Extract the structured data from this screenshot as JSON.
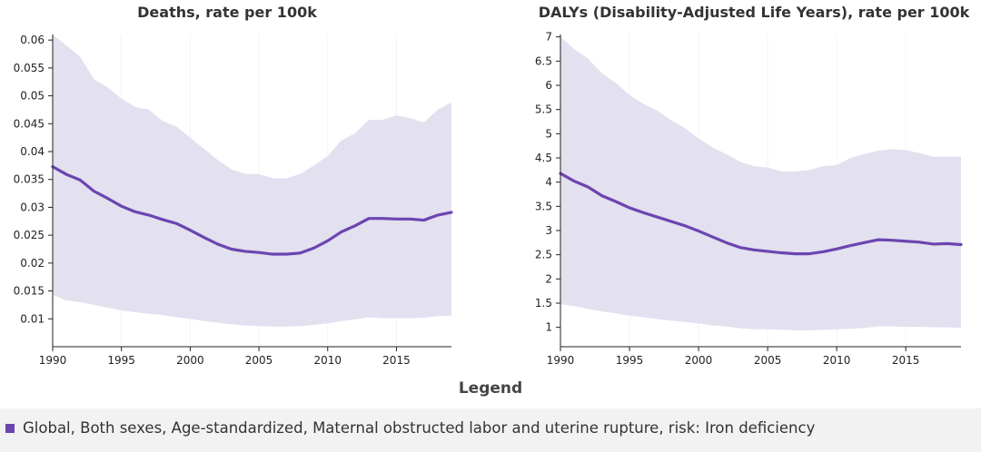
{
  "chart_data": [
    {
      "type": "area",
      "title": "Deaths, rate per 100k",
      "xlabel": "",
      "ylabel": "",
      "xlim": [
        1990,
        2019
      ],
      "ylim": [
        0.005,
        0.061
      ],
      "x_ticks": [
        1990,
        1995,
        2000,
        2005,
        2010,
        2015
      ],
      "y_ticks": [
        0.01,
        0.015,
        0.02,
        0.025,
        0.03,
        0.035,
        0.04,
        0.045,
        0.05,
        0.055,
        0.06
      ],
      "y_tick_labels": [
        "0.01",
        "0.015",
        "0.02",
        "0.025",
        "0.03",
        "0.035",
        "0.04",
        "0.045",
        "0.05",
        "0.055",
        "0.06"
      ],
      "x": [
        1990,
        1991,
        1992,
        1993,
        1994,
        1995,
        1996,
        1997,
        1998,
        1999,
        2000,
        2001,
        2002,
        2003,
        2004,
        2005,
        2006,
        2007,
        2008,
        2009,
        2010,
        2011,
        2012,
        2013,
        2014,
        2015,
        2016,
        2017,
        2018,
        2019
      ],
      "series": [
        {
          "name": "Global, Both sexes, Age-standardized, Maternal obstructed labor and uterine rupture, risk: Iron deficiency",
          "values": [
            0.0373,
            0.0359,
            0.0349,
            0.0329,
            0.0316,
            0.0302,
            0.0292,
            0.0286,
            0.0278,
            0.0271,
            0.0259,
            0.0246,
            0.0234,
            0.0225,
            0.0221,
            0.0219,
            0.0216,
            0.0216,
            0.0218,
            0.0227,
            0.024,
            0.0256,
            0.0267,
            0.028,
            0.028,
            0.0279,
            0.0279,
            0.0277,
            0.0286,
            0.0291
          ],
          "upper": [
            0.061,
            0.059,
            0.057,
            0.053,
            0.0515,
            0.0495,
            0.048,
            0.0475,
            0.0455,
            0.0445,
            0.0425,
            0.0405,
            0.0385,
            0.0368,
            0.036,
            0.036,
            0.0352,
            0.0352,
            0.036,
            0.0375,
            0.0392,
            0.042,
            0.0433,
            0.0457,
            0.0457,
            0.0465,
            0.046,
            0.0452,
            0.0475,
            0.0488
          ],
          "lower": [
            0.0143,
            0.0133,
            0.013,
            0.0125,
            0.012,
            0.0115,
            0.0112,
            0.0109,
            0.0107,
            0.0103,
            0.01,
            0.0096,
            0.0093,
            0.009,
            0.0088,
            0.0087,
            0.0086,
            0.0086,
            0.0087,
            0.0089,
            0.0092,
            0.0096,
            0.0099,
            0.0103,
            0.0101,
            0.0101,
            0.0101,
            0.0102,
            0.0105,
            0.0106
          ]
        }
      ]
    },
    {
      "type": "area",
      "title": "DALYs (Disability-Adjusted Life Years), rate per 100k",
      "xlabel": "",
      "ylabel": "",
      "xlim": [
        1990,
        2019
      ],
      "ylim": [
        0.6,
        7.05
      ],
      "x_ticks": [
        1990,
        1995,
        2000,
        2005,
        2010,
        2015
      ],
      "y_ticks": [
        1,
        1.5,
        2,
        2.5,
        3,
        3.5,
        4,
        4.5,
        5,
        5.5,
        6,
        6.5,
        7
      ],
      "y_tick_labels": [
        "1",
        "1.5",
        "2",
        "2.5",
        "3",
        "3.5",
        "4",
        "4.5",
        "5",
        "5.5",
        "6",
        "6.5",
        "7"
      ],
      "x": [
        1990,
        1991,
        1992,
        1993,
        1994,
        1995,
        1996,
        1997,
        1998,
        1999,
        2000,
        2001,
        2002,
        2003,
        2004,
        2005,
        2006,
        2007,
        2008,
        2009,
        2010,
        2011,
        2012,
        2013,
        2014,
        2015,
        2016,
        2017,
        2018,
        2019
      ],
      "series": [
        {
          "name": "Global, Both sexes, Age-standardized, Maternal obstructed labor and uterine rupture, risk: Iron deficiency",
          "values": [
            4.18,
            4.02,
            3.9,
            3.72,
            3.6,
            3.47,
            3.37,
            3.28,
            3.19,
            3.1,
            2.99,
            2.87,
            2.75,
            2.65,
            2.6,
            2.57,
            2.54,
            2.52,
            2.52,
            2.56,
            2.62,
            2.69,
            2.75,
            2.81,
            2.8,
            2.78,
            2.76,
            2.72,
            2.73,
            2.71
          ],
          "upper": [
            7.0,
            6.75,
            6.55,
            6.25,
            6.05,
            5.8,
            5.62,
            5.48,
            5.28,
            5.12,
            4.9,
            4.72,
            4.58,
            4.42,
            4.33,
            4.3,
            4.22,
            4.22,
            4.25,
            4.33,
            4.35,
            4.5,
            4.58,
            4.65,
            4.68,
            4.66,
            4.6,
            4.52,
            4.53,
            4.52
          ],
          "lower": [
            1.48,
            1.44,
            1.38,
            1.33,
            1.29,
            1.24,
            1.21,
            1.17,
            1.14,
            1.11,
            1.08,
            1.04,
            1.02,
            0.98,
            0.96,
            0.96,
            0.95,
            0.94,
            0.94,
            0.95,
            0.96,
            0.97,
            0.99,
            1.02,
            1.02,
            1.01,
            1.01,
            1.0,
            1.0,
            0.99
          ]
        }
      ]
    }
  ],
  "legend": {
    "title": "Legend",
    "items": [
      {
        "label": "Global, Both sexes, Age-standardized, Maternal obstructed labor and uterine rupture, risk: Iron deficiency",
        "color": "#6b45b0"
      }
    ]
  },
  "colors": {
    "line": "#6b45b0",
    "band": "#e3e0ef",
    "grid": "#f3f3f6",
    "axis": "#222222"
  }
}
